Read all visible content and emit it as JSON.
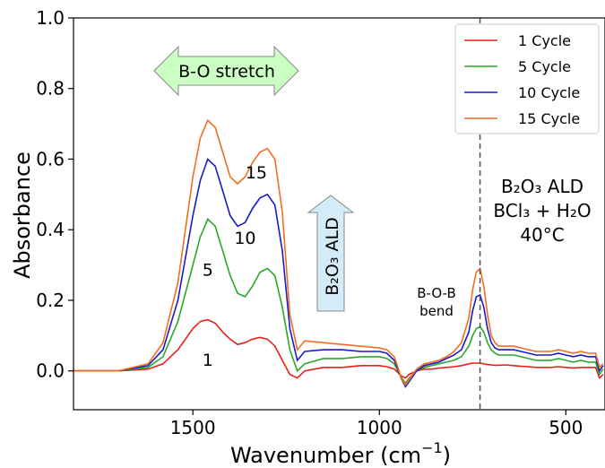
{
  "chart_data": {
    "type": "line",
    "xlabel": "Wavenumber (cm",
    "xlabel_sup": "−1",
    "xlabel_end": ")",
    "ylabel": "Absorbance",
    "xlim": [
      1820,
      395
    ],
    "ylim": [
      -0.11,
      1.0
    ],
    "x_ticks": [
      1500,
      1000,
      500
    ],
    "y_ticks": [
      0.0,
      0.2,
      0.4,
      0.6,
      0.8,
      1.0
    ],
    "y_tick_labels": [
      "0.0",
      "0.2",
      "0.4",
      "0.6",
      "0.8",
      "1.0"
    ],
    "legend_position": "top-right",
    "grid": false,
    "reference_line": {
      "x": 730,
      "style": "dashed"
    },
    "x": [
      1820,
      1700,
      1620,
      1580,
      1540,
      1500,
      1480,
      1460,
      1440,
      1420,
      1400,
      1380,
      1360,
      1340,
      1320,
      1300,
      1280,
      1260,
      1240,
      1220,
      1200,
      1150,
      1100,
      1050,
      1000,
      980,
      960,
      950,
      940,
      930,
      920,
      900,
      880,
      860,
      840,
      820,
      800,
      780,
      760,
      750,
      740,
      730,
      720,
      710,
      700,
      690,
      680,
      660,
      640,
      620,
      600,
      580,
      560,
      540,
      520,
      500,
      480,
      460,
      440,
      420,
      410,
      400
    ],
    "series": [
      {
        "name": "1 Cycle",
        "color": "#e8201a",
        "values": [
          0,
          0,
          0.005,
          0.02,
          0.06,
          0.12,
          0.14,
          0.145,
          0.135,
          0.11,
          0.09,
          0.075,
          0.08,
          0.09,
          0.095,
          0.09,
          0.07,
          0.03,
          -0.01,
          -0.02,
          0,
          0.01,
          0.01,
          0.015,
          0.015,
          0.012,
          0.005,
          -0.005,
          -0.015,
          -0.02,
          -0.01,
          0,
          0.005,
          0.005,
          0.008,
          0.01,
          0.012,
          0.015,
          0.02,
          0.022,
          0.022,
          0.022,
          0.02,
          0.018,
          0.017,
          0.016,
          0.016,
          0.017,
          0.015,
          0.013,
          0.012,
          0.01,
          0.01,
          0.01,
          0.012,
          0.01,
          0.008,
          0.01,
          0.01,
          0.01,
          -0.02,
          -0.01
        ]
      },
      {
        "name": "5 Cycle",
        "color": "#2aa82a",
        "values": [
          0,
          0,
          0.01,
          0.04,
          0.14,
          0.3,
          0.38,
          0.43,
          0.41,
          0.34,
          0.27,
          0.22,
          0.21,
          0.24,
          0.28,
          0.29,
          0.27,
          0.18,
          0.06,
          0,
          0.02,
          0.035,
          0.035,
          0.04,
          0.04,
          0.035,
          0.02,
          0,
          -0.02,
          -0.035,
          -0.02,
          0,
          0.01,
          0.015,
          0.02,
          0.025,
          0.03,
          0.04,
          0.07,
          0.1,
          0.12,
          0.125,
          0.11,
          0.08,
          0.06,
          0.05,
          0.045,
          0.045,
          0.045,
          0.04,
          0.035,
          0.03,
          0.03,
          0.03,
          0.035,
          0.03,
          0.025,
          0.03,
          0.025,
          0.025,
          -0.01,
          0.005
        ]
      },
      {
        "name": "10 Cycle",
        "color": "#1a1ac8",
        "values": [
          0,
          0,
          0.015,
          0.06,
          0.2,
          0.44,
          0.54,
          0.6,
          0.58,
          0.51,
          0.44,
          0.41,
          0.42,
          0.46,
          0.49,
          0.5,
          0.47,
          0.34,
          0.12,
          0.03,
          0.055,
          0.06,
          0.06,
          0.055,
          0.055,
          0.05,
          0.03,
          0.005,
          -0.025,
          -0.045,
          -0.03,
          0,
          0.015,
          0.02,
          0.025,
          0.035,
          0.045,
          0.06,
          0.11,
          0.17,
          0.21,
          0.215,
          0.18,
          0.12,
          0.08,
          0.065,
          0.06,
          0.06,
          0.06,
          0.055,
          0.05,
          0.045,
          0.045,
          0.045,
          0.05,
          0.045,
          0.04,
          0.045,
          0.04,
          0.04,
          0,
          0.015
        ]
      },
      {
        "name": "15 Cycle",
        "color": "#f26d21",
        "values": [
          0,
          0,
          0.02,
          0.08,
          0.25,
          0.55,
          0.66,
          0.71,
          0.69,
          0.62,
          0.55,
          0.53,
          0.55,
          0.59,
          0.62,
          0.63,
          0.6,
          0.45,
          0.16,
          0.06,
          0.085,
          0.08,
          0.075,
          0.07,
          0.065,
          0.06,
          0.04,
          0.01,
          -0.025,
          -0.04,
          -0.025,
          0.005,
          0.02,
          0.025,
          0.03,
          0.04,
          0.055,
          0.08,
          0.15,
          0.23,
          0.28,
          0.29,
          0.24,
          0.16,
          0.1,
          0.08,
          0.07,
          0.07,
          0.07,
          0.065,
          0.06,
          0.055,
          0.055,
          0.055,
          0.06,
          0.055,
          0.05,
          0.055,
          0.05,
          0.05,
          0.01,
          0.02
        ]
      }
    ],
    "curve_labels": [
      {
        "text": "1",
        "x": 1460,
        "y": 0.015
      },
      {
        "text": "5",
        "x": 1460,
        "y": 0.27
      },
      {
        "text": "10",
        "x": 1360,
        "y": 0.36
      },
      {
        "text": "15",
        "x": 1330,
        "y": 0.545
      }
    ],
    "annotations": {
      "bo_stretch": "B-O stretch",
      "b2o3_ald_arrow": "B₂O₃ ALD",
      "bob_bend_line1": "B-O-B",
      "bob_bend_line2": "bend",
      "conditions": [
        "B₂O₃ ALD",
        "BCl₃ + H₂O",
        "40°C"
      ]
    },
    "colors": {
      "stretch_arrow_fill": "#ccffc4",
      "ald_arrow_fill": "#d3ecf8",
      "arrow_stroke": "#888888"
    }
  }
}
